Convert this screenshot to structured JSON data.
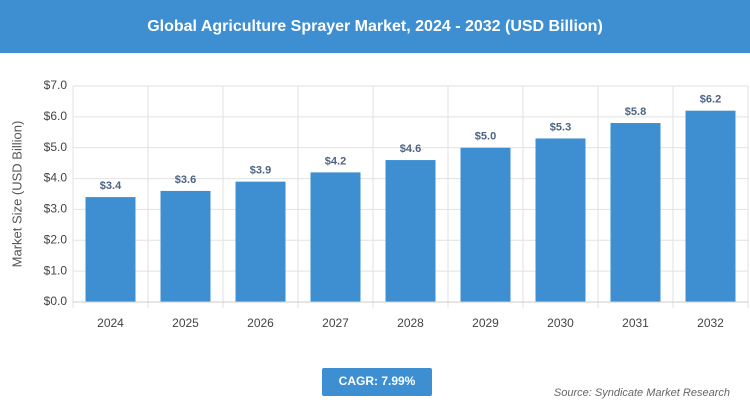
{
  "chart_data": {
    "type": "bar",
    "title": "Global Agriculture Sprayer Market, 2024 - 2032 (USD Billion)",
    "y_label": "Market Size (USD Billion)",
    "categories": [
      "2024",
      "2025",
      "2026",
      "2027",
      "2028",
      "2029",
      "2030",
      "2031",
      "2032"
    ],
    "values": [
      3.4,
      3.6,
      3.9,
      4.2,
      4.6,
      5.0,
      5.3,
      5.8,
      6.2
    ],
    "value_labels": [
      "$3.4",
      "$3.6",
      "$3.9",
      "$4.2",
      "$4.6",
      "$5.0",
      "$5.3",
      "$5.8",
      "$6.2"
    ],
    "color": "#3d8fd1",
    "ylim": [
      0,
      7
    ],
    "yticks": [
      {
        "value": 0,
        "label": "$0.0"
      },
      {
        "value": 1,
        "label": "$1.0"
      },
      {
        "value": 2,
        "label": "$2.0"
      },
      {
        "value": 3,
        "label": "$3.0"
      },
      {
        "value": 4,
        "label": "$4.0"
      },
      {
        "value": 5,
        "label": "$5.0"
      },
      {
        "value": 6,
        "label": "$6.0"
      },
      {
        "value": 7,
        "label": "$7.0"
      }
    ],
    "grid": true,
    "annotations": {
      "cagr": "CAGR: 7.99%",
      "source": "Source: Syndicate Market Research"
    }
  }
}
